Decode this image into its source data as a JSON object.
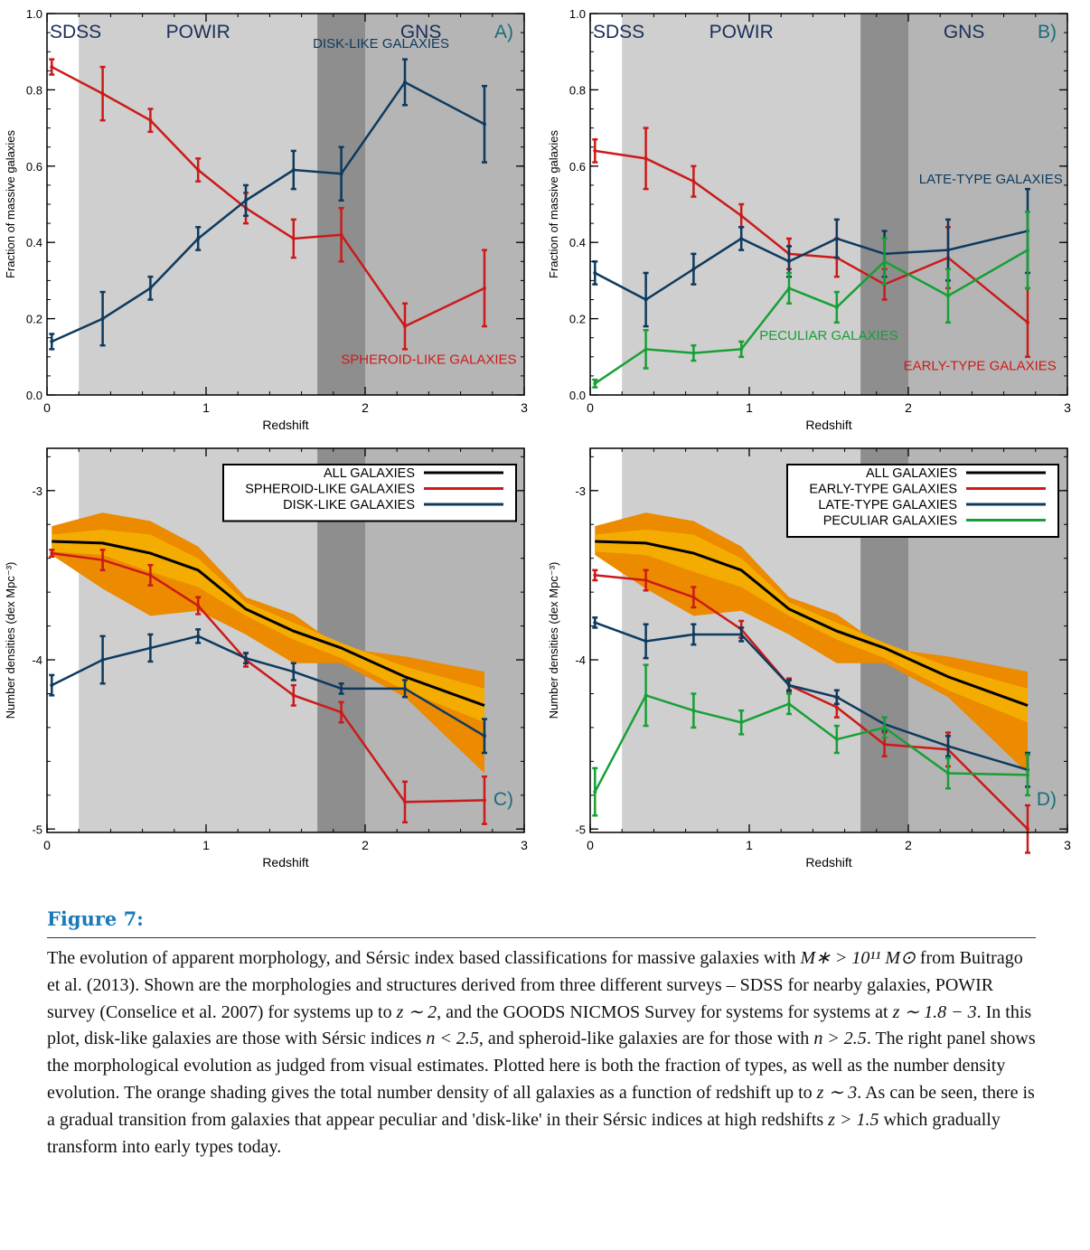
{
  "figure": {
    "label": "Figure 7:",
    "caption_parts": [
      "The evolution of apparent morphology, and Sérsic index based classifications for massive galaxies with ",
      "M∗ > 10¹¹ M⊙",
      " from Buitrago et al. (2013). Shown are the morphologies and structures derived from three different surveys – SDSS for nearby galaxies, POWIR survey (Conselice et al. 2007) for systems up to ",
      "z ∼ 2",
      ", and the GOODS NICMOS Survey for systems for systems at ",
      "z ∼ 1.8 − 3",
      ". In this plot, disk-like galaxies are those with Sérsic indices ",
      "n < 2.5",
      ", and spheroid-like galaxies are for those with ",
      "n > 2.5",
      ". The right panel shows the morphological evolution as judged from visual estimates. Plotted here is both the fraction of types, as well as the number density evolution. The orange shading gives the total number density of all galaxies as a function of redshift up to ",
      "z ∼ 3",
      ". As can be seen, there is a gradual transition from galaxies that appear peculiar and 'disk-like' in their Sérsic indices at high redshifts ",
      "z > 1.5",
      " which gradually transform into early types today."
    ]
  },
  "colors": {
    "red": "#cc1a1a",
    "blue": "#0d3a5e",
    "green": "#16a035",
    "black": "#000000",
    "orange_outer": "#ec8a00",
    "orange_inner": "#f5ac00",
    "powir_band": "#cfcfcf",
    "gns_band": "#b5b5b5",
    "overlap_band": "#8e8e8e"
  },
  "chart_data": [
    {
      "id": "A",
      "type": "line",
      "panel_label": "A)",
      "xlabel": "Redshift",
      "ylabel": "Fraction of massive galaxies",
      "xlim": [
        0,
        3
      ],
      "ylim": [
        0,
        1
      ],
      "xticks": [
        "0",
        "1",
        "2",
        "3"
      ],
      "yticks": [
        "0.0",
        "0.2",
        "0.4",
        "0.6",
        "0.8",
        "1.0"
      ],
      "surveys": [
        "SDSS",
        "POWIR",
        "GNS"
      ],
      "series": [
        {
          "name": "SPHEROID-LIKE GALAXIES",
          "color": "red",
          "x": [
            0.03,
            0.35,
            0.65,
            0.95,
            1.25,
            1.55,
            1.85,
            2.25,
            2.75
          ],
          "y": [
            0.86,
            0.79,
            0.72,
            0.59,
            0.49,
            0.41,
            0.42,
            0.18,
            0.28
          ],
          "err": [
            0.02,
            0.07,
            0.03,
            0.03,
            0.04,
            0.05,
            0.07,
            0.06,
            0.1
          ]
        },
        {
          "name": "DISK-LIKE GALAXIES",
          "color": "blue",
          "x": [
            0.03,
            0.35,
            0.65,
            0.95,
            1.25,
            1.55,
            1.85,
            2.25,
            2.75
          ],
          "y": [
            0.14,
            0.2,
            0.28,
            0.41,
            0.51,
            0.59,
            0.58,
            0.82,
            0.71
          ],
          "err": [
            0.02,
            0.07,
            0.03,
            0.03,
            0.04,
            0.05,
            0.07,
            0.06,
            0.1
          ]
        }
      ]
    },
    {
      "id": "B",
      "type": "line",
      "panel_label": "B)",
      "xlabel": "Redshift",
      "ylabel": "Fraction of massive galaxies",
      "xlim": [
        0,
        3
      ],
      "ylim": [
        0,
        1
      ],
      "xticks": [
        "0",
        "1",
        "2",
        "3"
      ],
      "yticks": [
        "0.0",
        "0.2",
        "0.4",
        "0.6",
        "0.8",
        "1.0"
      ],
      "surveys": [
        "SDSS",
        "POWIR",
        "GNS"
      ],
      "series": [
        {
          "name": "EARLY-TYPE GALAXIES",
          "color": "red",
          "x": [
            0.03,
            0.35,
            0.65,
            0.95,
            1.25,
            1.55,
            1.85,
            2.25,
            2.75
          ],
          "y": [
            0.64,
            0.62,
            0.56,
            0.47,
            0.37,
            0.36,
            0.29,
            0.36,
            0.19
          ],
          "err": [
            0.03,
            0.08,
            0.04,
            0.03,
            0.04,
            0.05,
            0.04,
            0.08,
            0.09
          ]
        },
        {
          "name": "LATE-TYPE GALAXIES",
          "color": "blue",
          "x": [
            0.03,
            0.35,
            0.65,
            0.95,
            1.25,
            1.55,
            1.85,
            2.25,
            2.75
          ],
          "y": [
            0.32,
            0.25,
            0.33,
            0.41,
            0.35,
            0.41,
            0.37,
            0.38,
            0.43
          ],
          "err": [
            0.03,
            0.07,
            0.04,
            0.03,
            0.04,
            0.05,
            0.06,
            0.08,
            0.11
          ]
        },
        {
          "name": "PECULIAR GALAXIES",
          "color": "green",
          "x": [
            0.03,
            0.35,
            0.65,
            0.95,
            1.25,
            1.55,
            1.85,
            2.25,
            2.75
          ],
          "y": [
            0.03,
            0.12,
            0.11,
            0.12,
            0.28,
            0.23,
            0.35,
            0.26,
            0.38
          ],
          "err": [
            0.01,
            0.05,
            0.02,
            0.02,
            0.04,
            0.04,
            0.06,
            0.07,
            0.1
          ]
        }
      ],
      "series_labels": [
        "LATE-TYPE GALAXIES",
        "PECULIAR GALAXIES",
        "EARLY-TYPE GALAXIES"
      ]
    },
    {
      "id": "C",
      "type": "line",
      "panel_label": "C)",
      "xlabel": "Redshift",
      "ylabel": "Number densities (dex Mpc⁻³)",
      "xlim": [
        0,
        3
      ],
      "ylim": [
        -5.02,
        -2.75
      ],
      "xticks": [
        "0",
        "1",
        "2",
        "3"
      ],
      "yticks": [
        "-5",
        "-4",
        "-3"
      ],
      "legend": [
        "ALL GALAXIES",
        "SPHEROID-LIKE GALAXIES",
        "DISK-LIKE GALAXIES"
      ],
      "band": {
        "x": [
          0.03,
          0.35,
          0.65,
          0.95,
          1.25,
          1.55,
          1.85,
          2.25,
          2.75
        ],
        "upper_outer": [
          -3.21,
          -3.13,
          -3.18,
          -3.33,
          -3.63,
          -3.73,
          -3.93,
          -3.98,
          -4.07
        ],
        "lower_outer": [
          -3.38,
          -3.58,
          -3.74,
          -3.71,
          -3.85,
          -4.02,
          -4.02,
          -4.22,
          -4.67
        ],
        "upper_inner": [
          -3.26,
          -3.23,
          -3.26,
          -3.4,
          -3.66,
          -3.78,
          -3.9,
          -4.04,
          -4.17
        ],
        "lower_inner": [
          -3.36,
          -3.38,
          -3.48,
          -3.57,
          -3.74,
          -3.88,
          -3.99,
          -4.18,
          -4.37
        ]
      },
      "series": [
        {
          "name": "ALL GALAXIES",
          "color": "black",
          "x": [
            0.03,
            0.35,
            0.65,
            0.95,
            1.25,
            1.55,
            1.85,
            2.25,
            2.75
          ],
          "y": [
            -3.3,
            -3.31,
            -3.37,
            -3.47,
            -3.7,
            -3.83,
            -3.93,
            -4.1,
            -4.27
          ]
        },
        {
          "name": "SPHEROID-LIKE GALAXIES",
          "color": "red",
          "x": [
            0.03,
            0.35,
            0.65,
            0.95,
            1.25,
            1.55,
            1.85,
            2.25,
            2.75
          ],
          "y": [
            -3.37,
            -3.41,
            -3.5,
            -3.68,
            -4.0,
            -4.21,
            -4.31,
            -4.84,
            -4.83
          ],
          "err": [
            0.02,
            0.06,
            0.06,
            0.05,
            0.04,
            0.06,
            0.06,
            0.12,
            0.14
          ]
        },
        {
          "name": "DISK-LIKE GALAXIES",
          "color": "blue",
          "x": [
            0.03,
            0.35,
            0.65,
            0.95,
            1.25,
            1.55,
            1.85,
            2.25,
            2.75
          ],
          "y": [
            -4.15,
            -4.0,
            -3.93,
            -3.86,
            -3.99,
            -4.07,
            -4.17,
            -4.17,
            -4.45
          ],
          "err": [
            0.06,
            0.14,
            0.08,
            0.04,
            0.03,
            0.05,
            0.03,
            0.05,
            0.1
          ]
        }
      ]
    },
    {
      "id": "D",
      "type": "line",
      "panel_label": "D)",
      "xlabel": "Redshift",
      "ylabel": "Number densities (dex Mpc⁻³)",
      "xlim": [
        0,
        3
      ],
      "ylim": [
        -5.02,
        -2.75
      ],
      "xticks": [
        "0",
        "1",
        "2",
        "3"
      ],
      "yticks": [
        "-5",
        "-4",
        "-3"
      ],
      "legend": [
        "ALL GALAXIES",
        "EARLY-TYPE GALAXIES",
        "LATE-TYPE GALAXIES",
        "PECULIAR GALAXIES"
      ],
      "band": {
        "x": [
          0.03,
          0.35,
          0.65,
          0.95,
          1.25,
          1.55,
          1.85,
          2.25,
          2.75
        ],
        "upper_outer": [
          -3.21,
          -3.13,
          -3.18,
          -3.33,
          -3.63,
          -3.73,
          -3.93,
          -3.98,
          -4.07
        ],
        "lower_outer": [
          -3.38,
          -3.58,
          -3.74,
          -3.71,
          -3.85,
          -4.02,
          -4.02,
          -4.22,
          -4.67
        ],
        "upper_inner": [
          -3.26,
          -3.23,
          -3.26,
          -3.4,
          -3.66,
          -3.78,
          -3.9,
          -4.04,
          -4.17
        ],
        "lower_inner": [
          -3.36,
          -3.38,
          -3.48,
          -3.57,
          -3.74,
          -3.88,
          -3.99,
          -4.18,
          -4.37
        ]
      },
      "series": [
        {
          "name": "ALL GALAXIES",
          "color": "black",
          "x": [
            0.03,
            0.35,
            0.65,
            0.95,
            1.25,
            1.55,
            1.85,
            2.25,
            2.75
          ],
          "y": [
            -3.3,
            -3.31,
            -3.37,
            -3.47,
            -3.7,
            -3.83,
            -3.93,
            -4.1,
            -4.27
          ]
        },
        {
          "name": "EARLY-TYPE GALAXIES",
          "color": "red",
          "x": [
            0.03,
            0.35,
            0.65,
            0.95,
            1.25,
            1.55,
            1.85,
            2.25,
            2.75
          ],
          "y": [
            -3.5,
            -3.53,
            -3.63,
            -3.82,
            -4.15,
            -4.28,
            -4.5,
            -4.53,
            -5.0
          ],
          "err": [
            0.03,
            0.06,
            0.06,
            0.05,
            0.04,
            0.06,
            0.07,
            0.1,
            0.14
          ]
        },
        {
          "name": "LATE-TYPE GALAXIES",
          "color": "blue",
          "x": [
            0.03,
            0.35,
            0.65,
            0.95,
            1.25,
            1.55,
            1.85,
            2.25,
            2.75
          ],
          "y": [
            -3.78,
            -3.89,
            -3.85,
            -3.85,
            -4.15,
            -4.22,
            -4.38,
            -4.51,
            -4.65
          ],
          "err": [
            0.03,
            0.1,
            0.06,
            0.04,
            0.03,
            0.04,
            0.04,
            0.06,
            0.1
          ]
        },
        {
          "name": "PECULIAR GALAXIES",
          "color": "green",
          "x": [
            0.03,
            0.35,
            0.65,
            0.95,
            1.25,
            1.55,
            1.85,
            2.25,
            2.75
          ],
          "y": [
            -4.78,
            -4.21,
            -4.3,
            -4.37,
            -4.26,
            -4.47,
            -4.4,
            -4.67,
            -4.68
          ],
          "err": [
            0.14,
            0.18,
            0.1,
            0.07,
            0.06,
            0.08,
            0.06,
            0.09,
            0.12
          ]
        }
      ]
    }
  ]
}
